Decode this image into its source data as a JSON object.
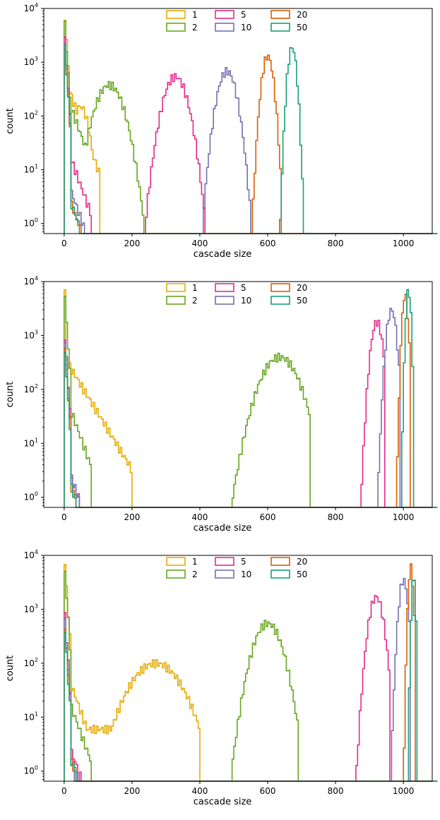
{
  "chart_data": [
    {
      "type": "histogram",
      "xlabel": "cascade size",
      "ylabel": "count",
      "xlim": [
        -60,
        1085
      ],
      "ylim": [
        0.65,
        10000
      ],
      "yscale": "log",
      "xticks": [
        0,
        200,
        400,
        600,
        800,
        1000
      ],
      "xtick_labels": [
        "0",
        "200",
        "400",
        "600",
        "800",
        "1000"
      ],
      "ytick_labels": [
        "10^0",
        "10^1",
        "10^2",
        "10^3",
        "10^4"
      ],
      "legend_position": "top-center",
      "series": [
        {
          "name": "1",
          "color": "#e6ab02",
          "hist": {
            "type": "bimodal",
            "spike": 7000,
            "tail": 300,
            "mu": 48,
            "sigma": 18,
            "peak": 150,
            "cut": 110
          }
        },
        {
          "name": "2",
          "color": "#66a61e",
          "hist": {
            "type": "bimodal",
            "spike": 5000,
            "tail": 180,
            "mu": 133,
            "sigma": 30,
            "peak": 380,
            "cut": 235
          }
        },
        {
          "name": "5",
          "color": "#e7298a",
          "hist": {
            "type": "bimodal",
            "spike": 2500,
            "tail": 20,
            "mu": 328,
            "sigma": 25,
            "peak": 540,
            "cut": 415
          }
        },
        {
          "name": "10",
          "color": "#7570b3",
          "hist": {
            "type": "bimodal",
            "spike": 2000,
            "tail": 5,
            "mu": 480,
            "sigma": 20,
            "peak": 680,
            "cut": 560
          }
        },
        {
          "name": "20",
          "color": "#d95f02",
          "hist": {
            "type": "bimodal",
            "spike": 1800,
            "tail": 3,
            "mu": 600,
            "sigma": 12,
            "peak": 1300,
            "cut": 640
          }
        },
        {
          "name": "50",
          "color": "#1b9e77",
          "hist": {
            "type": "bimodal",
            "spike": 2200,
            "tail": 3,
            "mu": 672,
            "sigma": 9,
            "peak": 1900,
            "cut": 705
          }
        }
      ]
    },
    {
      "type": "histogram",
      "xlabel": "cascade size",
      "ylabel": "count",
      "xlim": [
        -60,
        1085
      ],
      "ylim": [
        0.65,
        10000
      ],
      "yscale": "log",
      "xticks": [
        0,
        200,
        400,
        600,
        800,
        1000
      ],
      "xtick_labels": [
        "0",
        "200",
        "400",
        "600",
        "800",
        "1000"
      ],
      "ytick_labels": [
        "10^0",
        "10^1",
        "10^2",
        "10^3",
        "10^4"
      ],
      "legend_position": "top-center",
      "series": [
        {
          "name": "1",
          "color": "#e6ab02",
          "hist": {
            "type": "decay",
            "spike": 7000,
            "start": 400,
            "rate": 0.024,
            "cut": 200
          }
        },
        {
          "name": "2",
          "color": "#66a61e",
          "hist": {
            "type": "bimodal",
            "spike": 5000,
            "tail": 50,
            "mu": 635,
            "sigma": 40,
            "peak": 400,
            "cut": 725
          }
        },
        {
          "name": "5",
          "color": "#e7298a",
          "hist": {
            "type": "bimodal",
            "spike": 1000,
            "tail": 3,
            "mu": 922,
            "sigma": 12,
            "peak": 1800,
            "cut": 945
          }
        },
        {
          "name": "10",
          "color": "#7570b3",
          "hist": {
            "type": "bimodal",
            "spike": 800,
            "tail": 3,
            "mu": 965,
            "sigma": 10,
            "peak": 3000,
            "cut": 990
          }
        },
        {
          "name": "20",
          "color": "#d95f02",
          "hist": {
            "type": "bimodal",
            "spike": 600,
            "tail": 2,
            "mu": 1005,
            "sigma": 6,
            "peak": 5500,
            "cut": 1020
          }
        },
        {
          "name": "50",
          "color": "#1b9e77",
          "hist": {
            "type": "bimodal",
            "spike": 500,
            "tail": 2,
            "mu": 1015,
            "sigma": 5,
            "peak": 7000,
            "cut": 1030
          }
        }
      ]
    },
    {
      "type": "histogram",
      "xlabel": "cascade size",
      "ylabel": "count",
      "xlim": [
        -60,
        1085
      ],
      "ylim": [
        0.65,
        10000
      ],
      "yscale": "log",
      "xticks": [
        0,
        200,
        400,
        600,
        800,
        1000
      ],
      "xtick_labels": [
        "0",
        "200",
        "400",
        "600",
        "800",
        "1000"
      ],
      "ytick_labels": [
        "10^0",
        "10^1",
        "10^2",
        "10^3",
        "10^4"
      ],
      "legend_position": "top-center",
      "series": [
        {
          "name": "1",
          "color": "#e6ab02",
          "hist": {
            "type": "bimodal",
            "spike": 7000,
            "tail": 50,
            "mu": 270,
            "sigma": 55,
            "peak": 100,
            "cut": 400,
            "floor": 6
          }
        },
        {
          "name": "2",
          "color": "#66a61e",
          "hist": {
            "type": "bimodal",
            "spike": 5000,
            "tail": 20,
            "mu": 600,
            "sigma": 30,
            "peak": 550,
            "cut": 690
          }
        },
        {
          "name": "5",
          "color": "#e7298a",
          "hist": {
            "type": "bimodal",
            "spike": 800,
            "tail": 3,
            "mu": 920,
            "sigma": 15,
            "peak": 1700,
            "cut": 960
          }
        },
        {
          "name": "10",
          "color": "#7570b3",
          "hist": {
            "type": "bimodal",
            "spike": 600,
            "tail": 2,
            "mu": 1000,
            "sigma": 9,
            "peak": 3500,
            "cut": 1020
          }
        },
        {
          "name": "20",
          "color": "#d95f02",
          "hist": {
            "type": "bimodal",
            "spike": 500,
            "tail": 2,
            "mu": 1022,
            "sigma": 5,
            "peak": 6000,
            "cut": 1035
          }
        },
        {
          "name": "50",
          "color": "#1b9e77",
          "hist": {
            "type": "bimodal",
            "spike": 400,
            "tail": 2,
            "mu": 1030,
            "sigma": 4,
            "peak": 4000,
            "cut": 1040
          }
        }
      ]
    }
  ]
}
